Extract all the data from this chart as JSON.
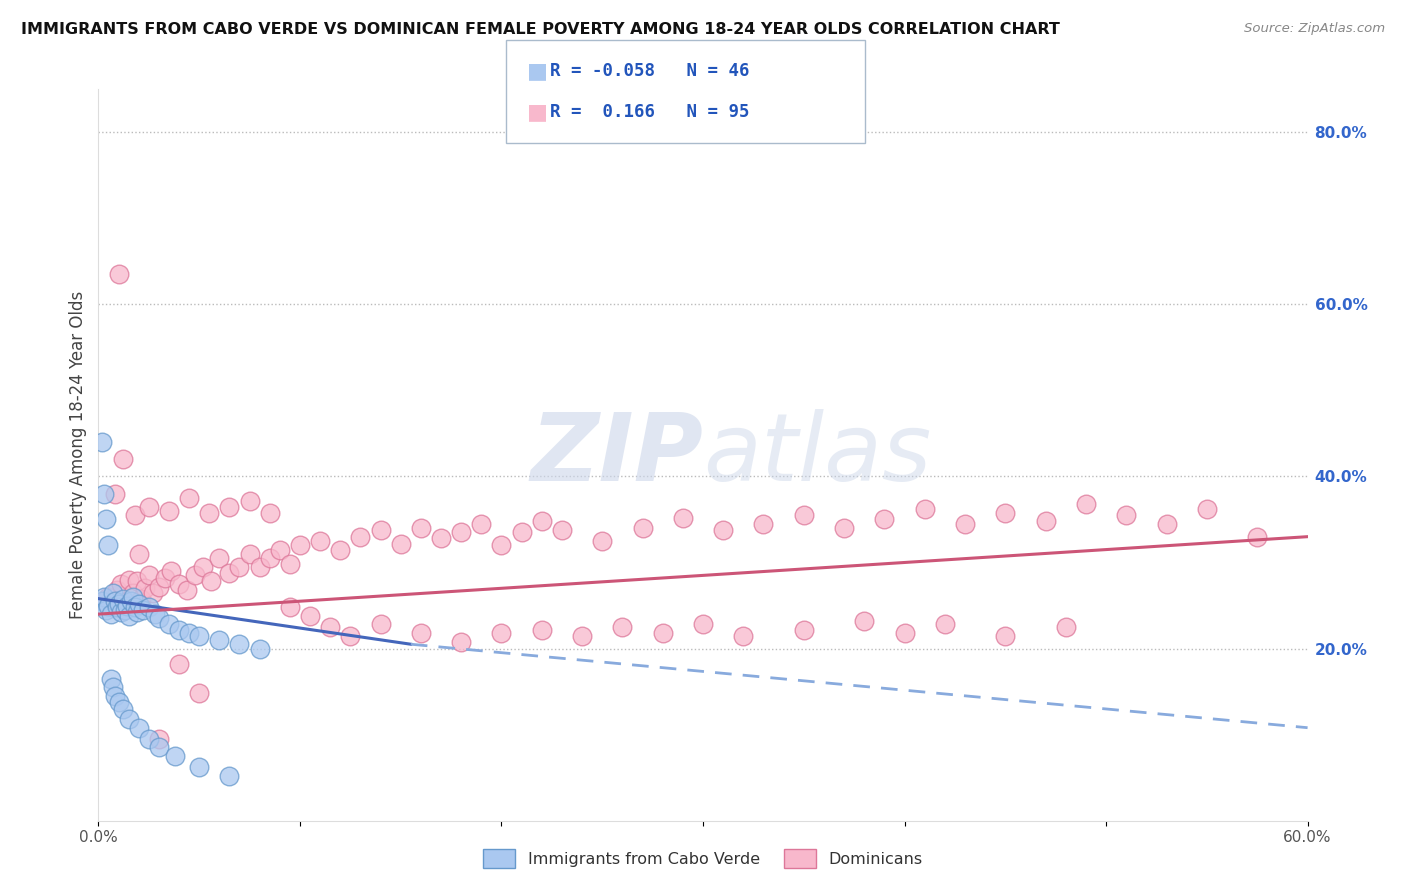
{
  "title": "IMMIGRANTS FROM CABO VERDE VS DOMINICAN FEMALE POVERTY AMONG 18-24 YEAR OLDS CORRELATION CHART",
  "source": "Source: ZipAtlas.com",
  "ylabel": "Female Poverty Among 18-24 Year Olds",
  "xlim": [
    0.0,
    0.6
  ],
  "ylim": [
    0.0,
    0.85
  ],
  "yticks_right": [
    0.2,
    0.4,
    0.6,
    0.8
  ],
  "ytick_right_labels": [
    "20.0%",
    "40.0%",
    "60.0%",
    "80.0%"
  ],
  "cabo_verde_R": "-0.058",
  "cabo_verde_N": "46",
  "dominican_R": "0.166",
  "dominican_N": "95",
  "cabo_verde_color": "#aac8f0",
  "cabo_verde_edge": "#6699cc",
  "dominican_color": "#f8b8cc",
  "dominican_edge": "#dd7799",
  "trend_cabo_solid_color": "#4466bb",
  "trend_cabo_dash_color": "#88aadd",
  "trend_dom_color": "#cc5577",
  "background_color": "#ffffff",
  "grid_color": "#bbbbbb",
  "watermark_color": "#ccd8ee",
  "cabo_verde_x": [
    0.002,
    0.003,
    0.004,
    0.005,
    0.006,
    0.007,
    0.008,
    0.009,
    0.01,
    0.011,
    0.012,
    0.013,
    0.014,
    0.015,
    0.016,
    0.017,
    0.018,
    0.019,
    0.02,
    0.022,
    0.025,
    0.028,
    0.03,
    0.035,
    0.04,
    0.045,
    0.05,
    0.06,
    0.07,
    0.08,
    0.002,
    0.003,
    0.004,
    0.005,
    0.006,
    0.007,
    0.008,
    0.01,
    0.012,
    0.015,
    0.02,
    0.025,
    0.03,
    0.038,
    0.05,
    0.065
  ],
  "cabo_verde_y": [
    0.255,
    0.26,
    0.245,
    0.25,
    0.24,
    0.265,
    0.255,
    0.248,
    0.252,
    0.242,
    0.258,
    0.245,
    0.25,
    0.238,
    0.255,
    0.26,
    0.248,
    0.242,
    0.252,
    0.245,
    0.248,
    0.24,
    0.235,
    0.228,
    0.222,
    0.218,
    0.215,
    0.21,
    0.205,
    0.2,
    0.44,
    0.38,
    0.35,
    0.32,
    0.165,
    0.155,
    0.145,
    0.138,
    0.13,
    0.118,
    0.108,
    0.095,
    0.085,
    0.075,
    0.062,
    0.052
  ],
  "dominican_x": [
    0.003,
    0.005,
    0.007,
    0.009,
    0.011,
    0.013,
    0.015,
    0.017,
    0.019,
    0.021,
    0.023,
    0.025,
    0.027,
    0.03,
    0.033,
    0.036,
    0.04,
    0.044,
    0.048,
    0.052,
    0.056,
    0.06,
    0.065,
    0.07,
    0.075,
    0.08,
    0.085,
    0.09,
    0.095,
    0.1,
    0.11,
    0.12,
    0.13,
    0.14,
    0.15,
    0.16,
    0.17,
    0.18,
    0.19,
    0.2,
    0.21,
    0.22,
    0.23,
    0.25,
    0.27,
    0.29,
    0.31,
    0.33,
    0.35,
    0.37,
    0.39,
    0.41,
    0.43,
    0.45,
    0.47,
    0.49,
    0.51,
    0.53,
    0.55,
    0.575,
    0.008,
    0.012,
    0.018,
    0.025,
    0.035,
    0.045,
    0.055,
    0.065,
    0.075,
    0.085,
    0.095,
    0.105,
    0.115,
    0.125,
    0.14,
    0.16,
    0.18,
    0.2,
    0.22,
    0.24,
    0.26,
    0.28,
    0.3,
    0.32,
    0.35,
    0.38,
    0.4,
    0.42,
    0.45,
    0.48,
    0.01,
    0.02,
    0.03,
    0.04,
    0.05
  ],
  "dominican_y": [
    0.255,
    0.26,
    0.248,
    0.268,
    0.275,
    0.252,
    0.28,
    0.265,
    0.278,
    0.258,
    0.27,
    0.285,
    0.265,
    0.272,
    0.282,
    0.29,
    0.275,
    0.268,
    0.285,
    0.295,
    0.278,
    0.305,
    0.288,
    0.295,
    0.31,
    0.295,
    0.305,
    0.315,
    0.298,
    0.32,
    0.325,
    0.315,
    0.33,
    0.338,
    0.322,
    0.34,
    0.328,
    0.335,
    0.345,
    0.32,
    0.335,
    0.348,
    0.338,
    0.325,
    0.34,
    0.352,
    0.338,
    0.345,
    0.355,
    0.34,
    0.35,
    0.362,
    0.345,
    0.358,
    0.348,
    0.368,
    0.355,
    0.345,
    0.362,
    0.33,
    0.38,
    0.42,
    0.355,
    0.365,
    0.36,
    0.375,
    0.358,
    0.365,
    0.372,
    0.358,
    0.248,
    0.238,
    0.225,
    0.215,
    0.228,
    0.218,
    0.208,
    0.218,
    0.222,
    0.215,
    0.225,
    0.218,
    0.228,
    0.215,
    0.222,
    0.232,
    0.218,
    0.228,
    0.215,
    0.225,
    0.635,
    0.31,
    0.095,
    0.182,
    0.148
  ]
}
